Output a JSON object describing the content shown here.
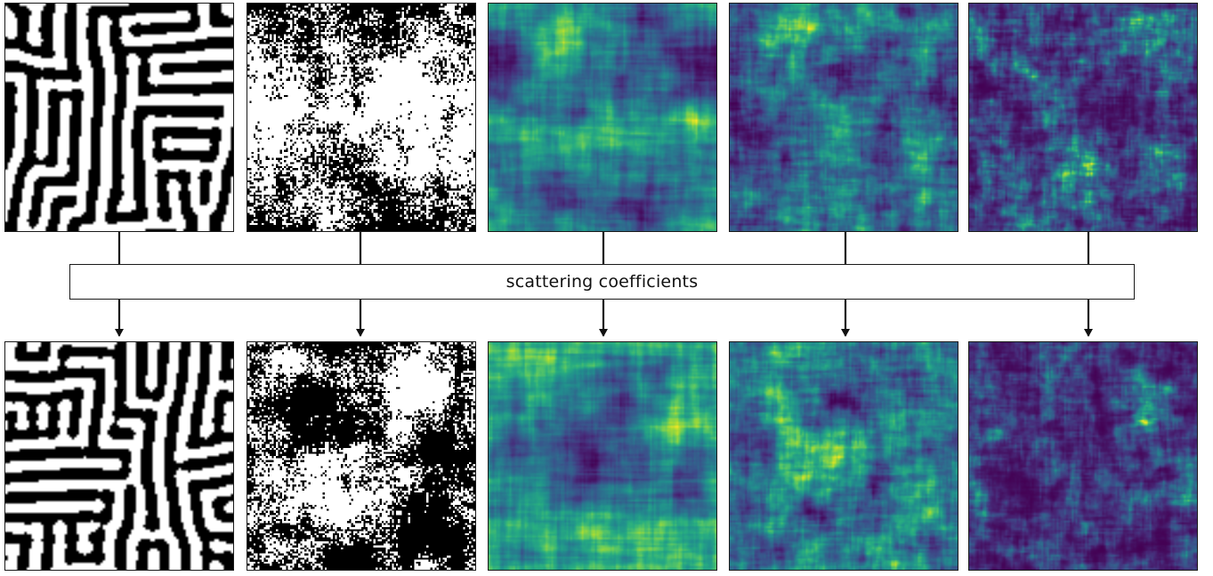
{
  "bottleneck": {
    "label": "scattering coefficients"
  },
  "columns": [
    {
      "id": "turing",
      "colormap": "binary",
      "top_name": "original-turing-pattern",
      "bottom_name": "synthesized-turing-pattern"
    },
    {
      "id": "ising",
      "colormap": "binary",
      "top_name": "original-ising-field",
      "bottom_name": "synthesized-ising-field"
    },
    {
      "id": "field-a",
      "colormap": "viridis",
      "top_name": "original-field-a",
      "bottom_name": "synthesized-field-a"
    },
    {
      "id": "field-b",
      "colormap": "viridis",
      "top_name": "original-field-b",
      "bottom_name": "synthesized-field-b"
    },
    {
      "id": "field-c",
      "colormap": "viridis",
      "top_name": "original-field-c",
      "bottom_name": "synthesized-field-c"
    }
  ],
  "colors": {
    "ink": "#111111",
    "viridis_dark": "#440154",
    "viridis_mid": "#21918c",
    "viridis_bright": "#fde725"
  }
}
